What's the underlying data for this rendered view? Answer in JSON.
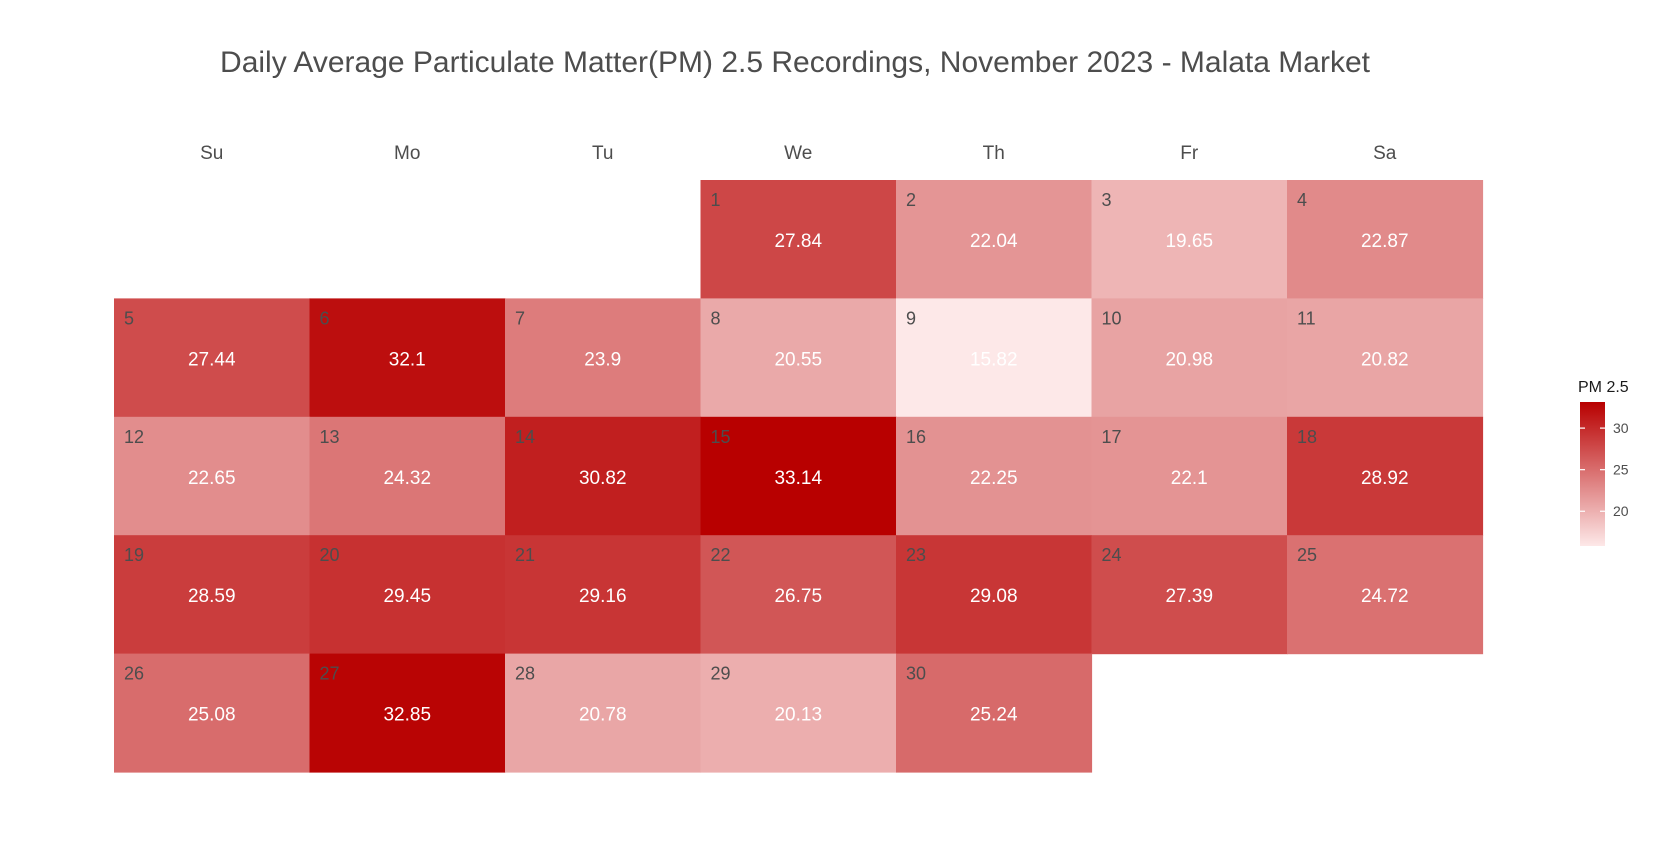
{
  "chart_data": {
    "type": "heatmap",
    "title": "Daily Average Particulate Matter(PM) 2.5 Recordings, November 2023 - Malata Market",
    "weekdays": [
      "Su",
      "Mo",
      "Tu",
      "We",
      "Th",
      "Fr",
      "Sa"
    ],
    "first_weekday_index": 3,
    "days": [
      1,
      2,
      3,
      4,
      5,
      6,
      7,
      8,
      9,
      10,
      11,
      12,
      13,
      14,
      15,
      16,
      17,
      18,
      19,
      20,
      21,
      22,
      23,
      24,
      25,
      26,
      27,
      28,
      29,
      30
    ],
    "values": [
      27.84,
      22.04,
      19.65,
      22.87,
      27.44,
      32.1,
      23.9,
      20.55,
      15.82,
      20.98,
      20.82,
      22.65,
      24.32,
      30.82,
      33.14,
      22.25,
      22.1,
      28.92,
      28.59,
      29.45,
      29.16,
      26.75,
      29.08,
      27.39,
      24.72,
      25.08,
      32.85,
      20.78,
      20.13,
      25.24
    ],
    "legend": {
      "title": "PM 2.5",
      "ticks": [
        20,
        25,
        30
      ],
      "range": [
        15.82,
        33.14
      ],
      "low_color": "#fde8e8",
      "high_color": "#b80000",
      "placement": "right"
    }
  }
}
